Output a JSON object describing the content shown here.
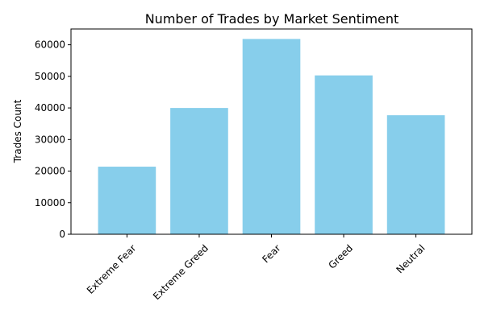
{
  "chart_data": {
    "type": "bar",
    "title": "Number of Trades by Market Sentiment",
    "xlabel": "",
    "ylabel": "Trades Count",
    "categories": [
      "Extreme Fear",
      "Extreme Greed",
      "Fear",
      "Greed",
      "Neutral"
    ],
    "values": [
      21400,
      39990,
      61840,
      50300,
      37690
    ],
    "ylim": [
      0,
      65000
    ],
    "yticks": [
      0,
      10000,
      20000,
      30000,
      40000,
      50000,
      60000
    ],
    "grid": false,
    "bar_color": "#87ceeb"
  }
}
